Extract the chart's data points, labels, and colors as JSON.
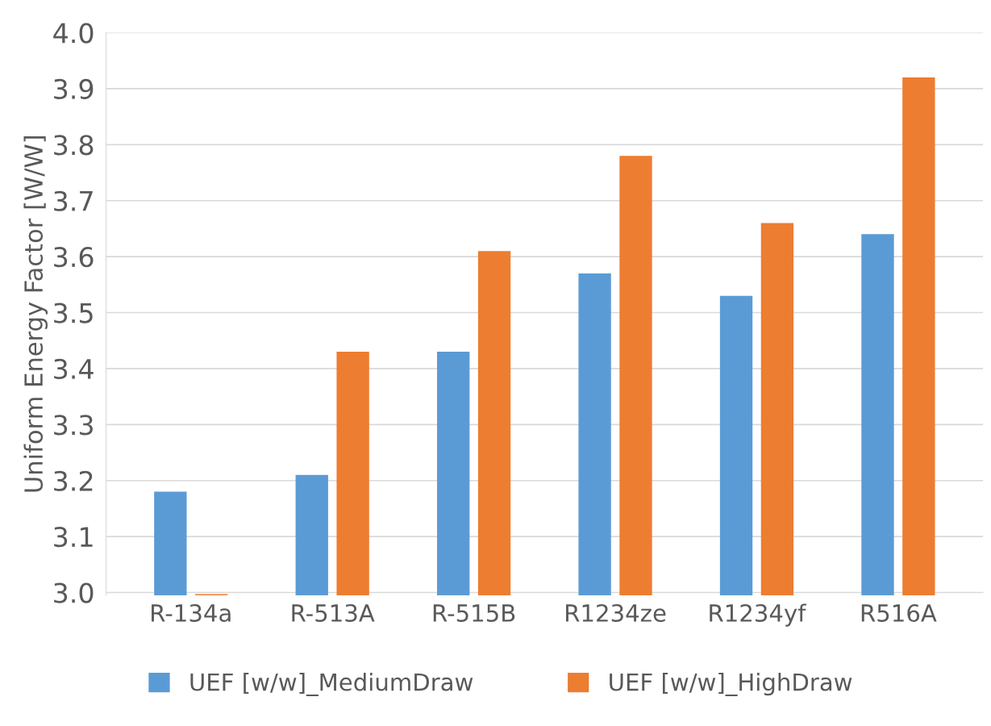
{
  "chart_data": {
    "type": "bar",
    "ylabel": "Uniform Energy Factor [W/W]",
    "categories": [
      "R-134a",
      "R-513A",
      "R-515B",
      "R1234ze",
      "R1234yf",
      "R516A"
    ],
    "series": [
      {
        "name": "UEF [w/w]_MediumDraw",
        "color": "#5b9bd5",
        "values": [
          3.18,
          3.21,
          3.43,
          3.57,
          3.53,
          3.64
        ]
      },
      {
        "name": "UEF [w/w]_HighDraw",
        "color": "#ed7d31",
        "values": [
          2.997,
          3.43,
          3.61,
          3.78,
          3.66,
          3.92
        ]
      }
    ],
    "ylim": [
      2.995,
      4.0
    ],
    "yticks": [
      {
        "value": 3,
        "label": "3.0"
      },
      3.1,
      3.2,
      3.3,
      3.4,
      3.5,
      3.6,
      3.7,
      3.8,
      3.9,
      {
        "value": 4,
        "label": "4.0"
      }
    ],
    "grid": "y",
    "legend": "bottom"
  }
}
